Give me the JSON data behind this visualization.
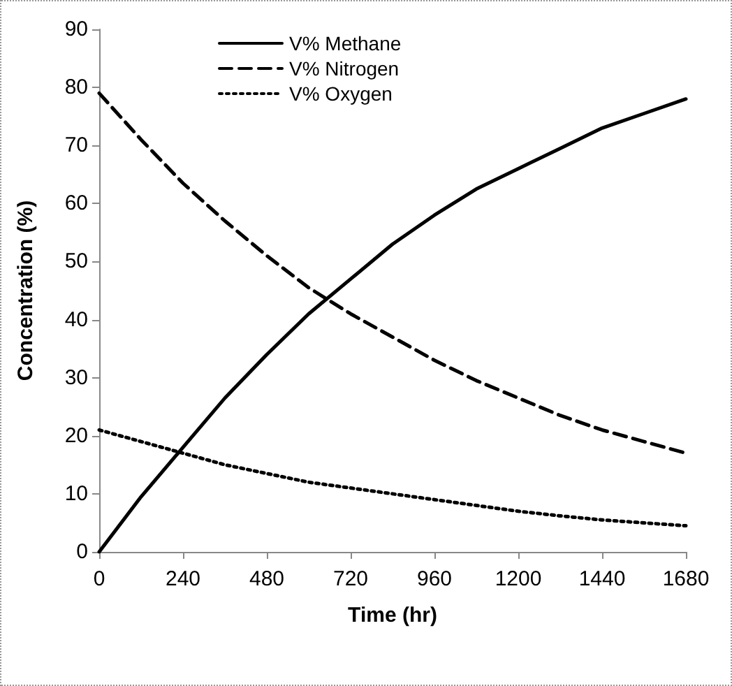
{
  "chart_data": {
    "type": "line",
    "xlabel": "Time (hr)",
    "ylabel": "Concentration (%)",
    "x": [
      0,
      120,
      240,
      360,
      480,
      600,
      720,
      840,
      960,
      1080,
      1200,
      1320,
      1440,
      1560,
      1680
    ],
    "series": [
      {
        "name": "V% Methane",
        "color": "#000000",
        "line_style": "solid",
        "values": [
          0,
          9.5,
          18,
          26.5,
          34,
          41,
          47,
          53,
          58,
          62.5,
          66,
          69.5,
          73,
          75.5,
          78
        ]
      },
      {
        "name": "V% Nitrogen",
        "color": "#000000",
        "line_style": "dashed",
        "values": [
          79,
          71,
          63.5,
          57,
          51,
          45.5,
          41,
          37,
          33,
          29.5,
          26.5,
          23.5,
          21,
          19,
          17
        ]
      },
      {
        "name": "V% Oxygen",
        "color": "#000000",
        "line_style": "dotted",
        "values": [
          21,
          19,
          17,
          15,
          13.5,
          12,
          11,
          10,
          9,
          8,
          7,
          6.2,
          5.5,
          5,
          4.5
        ]
      }
    ],
    "xlim": [
      0,
      1680
    ],
    "xticks": [
      0,
      240,
      480,
      720,
      960,
      1200,
      1440,
      1680
    ],
    "ylim": [
      0,
      90
    ],
    "yticks": [
      0,
      10,
      20,
      30,
      40,
      50,
      60,
      70,
      80,
      90
    ],
    "grid": false,
    "legend": "top left",
    "marker": "none"
  }
}
